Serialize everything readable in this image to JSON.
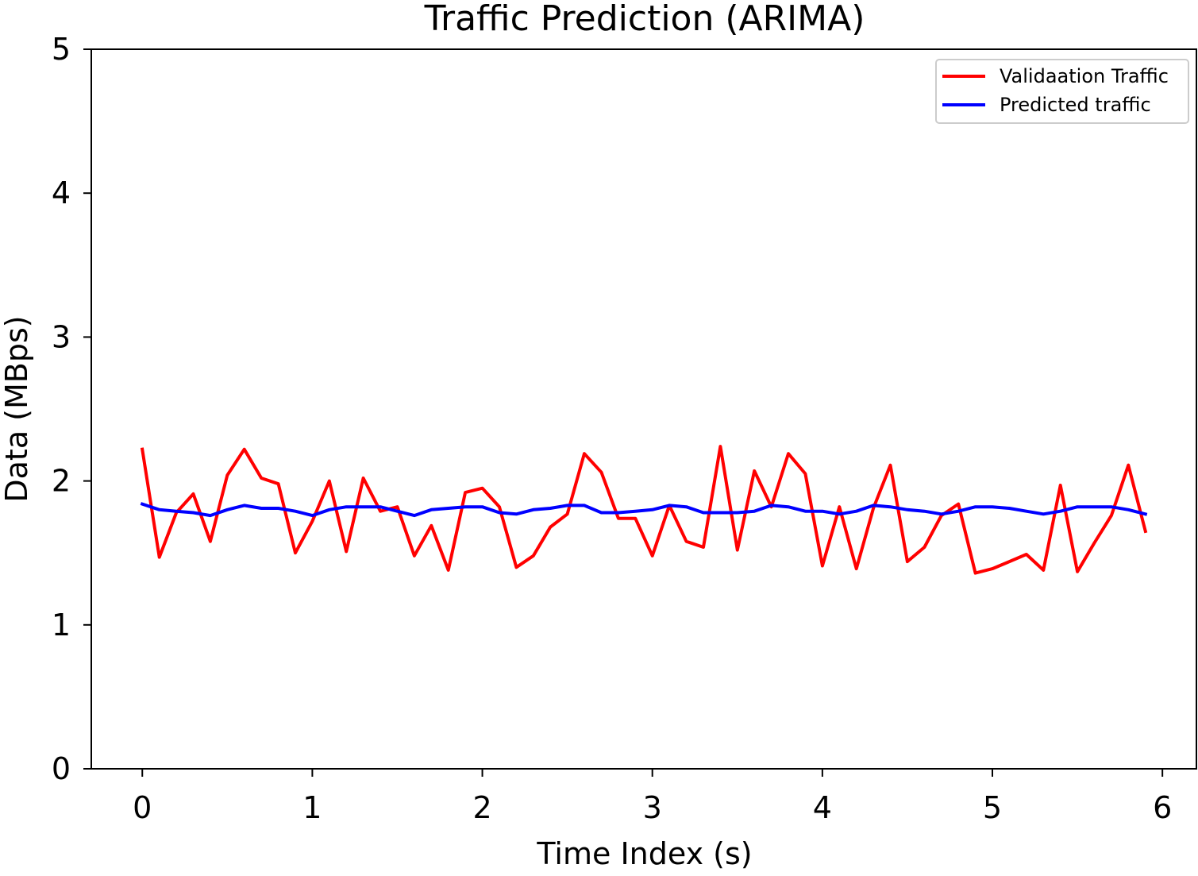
{
  "chart_data": {
    "type": "line",
    "title": "Traffic Prediction (ARIMA)",
    "xlabel": "Time Index (s)",
    "ylabel": "Data (MBps)",
    "xlim": [
      -0.3,
      6.2
    ],
    "ylim": [
      0,
      5
    ],
    "x_ticks": [
      0,
      1,
      2,
      3,
      4,
      5,
      6
    ],
    "y_ticks": [
      0,
      1,
      2,
      3,
      4,
      5
    ],
    "x_tick_labels": [
      "0",
      "1",
      "2",
      "3",
      "4",
      "5",
      "6"
    ],
    "y_tick_labels": [
      "0",
      "1",
      "2",
      "3",
      "4",
      "5"
    ],
    "grid": false,
    "legend_position": "top-right",
    "x": [
      0.0,
      0.1,
      0.2,
      0.3,
      0.4,
      0.5,
      0.6,
      0.7,
      0.8,
      0.9,
      1.0,
      1.1,
      1.2,
      1.3,
      1.4,
      1.5,
      1.6,
      1.7,
      1.8,
      1.9,
      2.0,
      2.1,
      2.2,
      2.3,
      2.4,
      2.5,
      2.6,
      2.7,
      2.8,
      2.9,
      3.0,
      3.1,
      3.2,
      3.3,
      3.4,
      3.5,
      3.6,
      3.7,
      3.8,
      3.9,
      4.0,
      4.1,
      4.2,
      4.3,
      4.4,
      4.5,
      4.6,
      4.7,
      4.8,
      4.9,
      5.0,
      5.1,
      5.2,
      5.3,
      5.4,
      5.5,
      5.6,
      5.7,
      5.8,
      5.9
    ],
    "series": [
      {
        "name": "Validaation Traffic",
        "color": "#ff0000",
        "values": [
          2.22,
          1.47,
          1.78,
          1.91,
          1.58,
          2.04,
          2.22,
          2.02,
          1.98,
          1.5,
          1.72,
          2.0,
          1.51,
          2.02,
          1.79,
          1.82,
          1.48,
          1.69,
          1.38,
          1.92,
          1.95,
          1.82,
          1.4,
          1.48,
          1.68,
          1.77,
          2.19,
          2.06,
          1.74,
          1.74,
          1.48,
          1.83,
          1.58,
          1.54,
          2.24,
          1.52,
          2.07,
          1.82,
          2.19,
          2.05,
          1.41,
          1.82,
          1.39,
          1.81,
          2.11,
          1.44,
          1.54,
          1.76,
          1.84,
          1.36,
          1.39,
          1.44,
          1.49,
          1.38,
          1.97,
          1.37,
          1.57,
          1.76,
          2.11,
          1.65
        ]
      },
      {
        "name": "Predicted traffic",
        "color": "#0000ff",
        "values": [
          1.84,
          1.8,
          1.79,
          1.78,
          1.76,
          1.8,
          1.83,
          1.81,
          1.81,
          1.79,
          1.76,
          1.8,
          1.82,
          1.82,
          1.82,
          1.79,
          1.76,
          1.8,
          1.81,
          1.82,
          1.82,
          1.78,
          1.77,
          1.8,
          1.81,
          1.83,
          1.83,
          1.78,
          1.78,
          1.79,
          1.8,
          1.83,
          1.82,
          1.78,
          1.78,
          1.78,
          1.79,
          1.83,
          1.82,
          1.79,
          1.79,
          1.77,
          1.79,
          1.83,
          1.82,
          1.8,
          1.79,
          1.77,
          1.79,
          1.82,
          1.82,
          1.81,
          1.79,
          1.77,
          1.79,
          1.82,
          1.82,
          1.82,
          1.8,
          1.77
        ]
      }
    ]
  }
}
